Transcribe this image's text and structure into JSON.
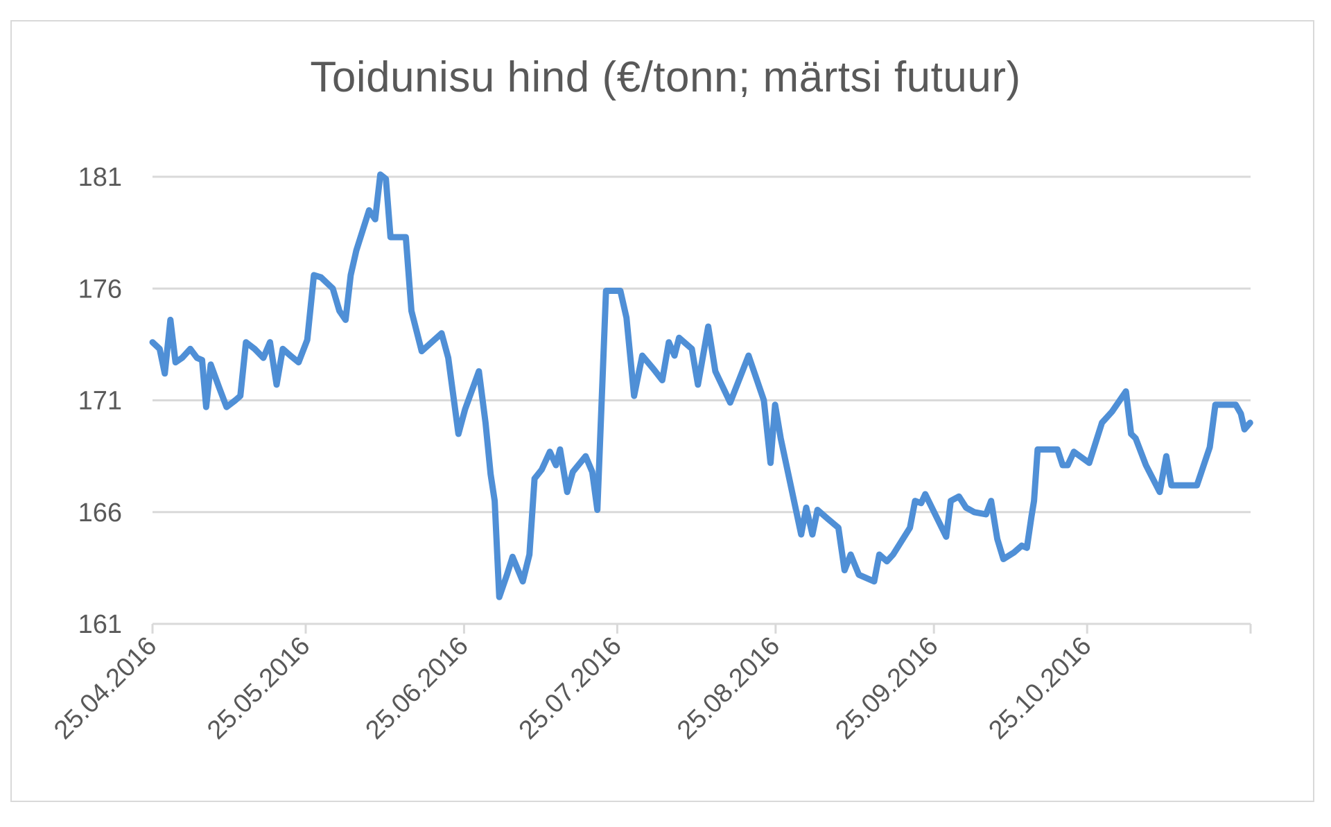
{
  "chart": {
    "title": "Toidunisu hind (€/tonn; märtsi futuur)",
    "line_color": "#4F8FD6",
    "grid_color": "#d9d9d9",
    "text_color": "#595959"
  },
  "chart_data": {
    "type": "line",
    "title": "Toidunisu hind (€/tonn; märtsi futuur)",
    "xlabel": "",
    "ylabel": "",
    "ylim": [
      161,
      181
    ],
    "y_ticks": [
      161,
      166,
      171,
      176,
      181
    ],
    "x_tick_labels": [
      "25.04.2016",
      "25.05.2016",
      "25.06.2016",
      "25.07.2016",
      "25.08.2016",
      "25.09.2016",
      "25.10.2016"
    ],
    "x_tick_days": [
      0,
      30,
      61,
      91,
      122,
      153,
      183
    ],
    "x_range_days": [
      0,
      215
    ],
    "grid": "horizontal",
    "legend": "none",
    "series": [
      {
        "name": "Toidunisu hind",
        "x_days": [
          0,
          1.4,
          2.4,
          3.5,
          4.5,
          5.8,
          7.4,
          8.7,
          9.7,
          10.5,
          11.4,
          13.0,
          14.5,
          16.2,
          17.2,
          18.3,
          20.0,
          21.7,
          23.0,
          24.3,
          25.5,
          27.0,
          28.6,
          30.3,
          31.6,
          33.0,
          35.3,
          36.6,
          37.8,
          38.8,
          39.9,
          42.4,
          43.6,
          44.6,
          45.7,
          46.6,
          49.6,
          50.7,
          52.7,
          56.6,
          57.9,
          59.9,
          61.2,
          63.9,
          65.2,
          66.2,
          67.0,
          67.9,
          69.4,
          70.5,
          72.5,
          73.8,
          74.8,
          76.2,
          77.8,
          79.0,
          79.8,
          81.2,
          82.3,
          84.8,
          86.1,
          87.1,
          88.8,
          91.6,
          92.8,
          94.3,
          95.9,
          98.1,
          99.8,
          101.1,
          102.2,
          103.1,
          105.6,
          106.8,
          108.8,
          110.2,
          113.1,
          116.7,
          119.7,
          121.0,
          121.9,
          123.0,
          127.0,
          128.0,
          129.2,
          130.2,
          132.2,
          134.3,
          135.5,
          136.7,
          138.3,
          141.3,
          142.3,
          143.8,
          145.0,
          148.3,
          149.3,
          150.5,
          151.3,
          155.4,
          156.3,
          157.9,
          159.3,
          160.9,
          163.2,
          164.2,
          165.4,
          166.6,
          168.7,
          170.2,
          171.2,
          172.1,
          172.6,
          173.3,
          177.2,
          178.2,
          179.2,
          180.4,
          183.4,
          185.9,
          187.9,
          190.6,
          191.6,
          192.5,
          194.5,
          197.2,
          198.5,
          199.5,
          204.5,
          207.0,
          208.1,
          212.1,
          213.1,
          213.8,
          214.9
        ],
        "values": [
          173.6,
          173.3,
          172.2,
          174.6,
          172.7,
          172.9,
          173.3,
          172.9,
          172.8,
          170.7,
          172.6,
          171.6,
          170.7,
          171.0,
          171.2,
          173.6,
          173.3,
          172.9,
          173.6,
          171.7,
          173.3,
          173.0,
          172.7,
          173.7,
          176.6,
          176.5,
          176.0,
          175.0,
          174.6,
          176.6,
          177.7,
          179.5,
          179.1,
          181.1,
          180.9,
          178.3,
          178.3,
          175.0,
          173.2,
          174.0,
          172.9,
          169.5,
          170.6,
          172.3,
          170.0,
          167.7,
          166.5,
          162.2,
          163.2,
          164.0,
          162.9,
          164.1,
          167.5,
          167.9,
          168.7,
          168.1,
          168.8,
          166.9,
          167.8,
          168.5,
          167.8,
          166.1,
          175.9,
          175.9,
          174.7,
          171.2,
          173.0,
          172.4,
          171.9,
          173.6,
          173.0,
          173.8,
          173.3,
          171.7,
          174.3,
          172.3,
          170.9,
          173.0,
          171.0,
          168.2,
          170.8,
          169.3,
          165.0,
          166.2,
          165.0,
          166.1,
          165.7,
          165.3,
          163.4,
          164.1,
          163.2,
          162.9,
          164.1,
          163.8,
          164.1,
          165.3,
          166.5,
          166.4,
          166.8,
          164.9,
          166.5,
          166.7,
          166.2,
          166.0,
          165.9,
          166.5,
          164.8,
          163.9,
          164.2,
          164.5,
          164.4,
          165.8,
          166.5,
          168.8,
          168.8,
          168.1,
          168.1,
          168.7,
          168.2,
          170.0,
          170.5,
          171.4,
          169.5,
          169.3,
          168.1,
          166.9,
          168.5,
          167.2,
          167.2,
          168.9,
          170.8,
          170.8,
          170.4,
          169.7,
          170.0
        ]
      }
    ]
  }
}
